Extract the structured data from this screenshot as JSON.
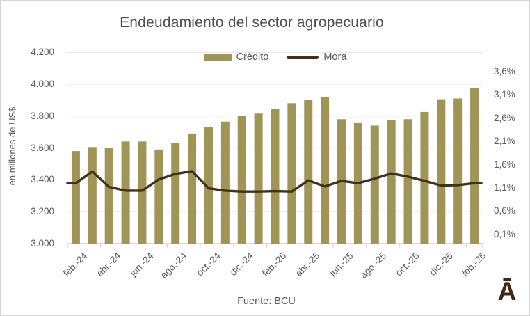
{
  "source_note": "Fuente: BCU",
  "logo_text": "Ā",
  "colors": {
    "bar": "#9e9557",
    "line": "#452e1a",
    "grid": "#d9d9d9",
    "axis_line": "#d9d9d9",
    "axis_text": "#595959",
    "title_text": "#4f4f4f",
    "logo": "#3d2817",
    "frame_border": "#d4d4d4",
    "background": "#ffffff"
  },
  "chart_data": {
    "type": "combo_bar_line",
    "title": "Endeudamiento del sector agropecuario",
    "grid": true,
    "legend_position": "top",
    "categories": [
      "feb.-24",
      "mar.-24",
      "abr.-24",
      "may.-24",
      "jun.-24",
      "jul.-24",
      "ago.-24",
      "sep.-24",
      "oct.-24",
      "nov.-24",
      "dic.-24",
      "ene.-25",
      "feb.-25",
      "mar.-25",
      "abr.-25",
      "may.-25",
      "jun.-25",
      "jul.-25",
      "ago.-25",
      "sep.-25",
      "oct.-25",
      "nov.-25",
      "dic.-25",
      "ene.-26",
      "feb.-26"
    ],
    "series": [
      {
        "name": "Crédito",
        "chart": "bar",
        "axis": "left",
        "unit": "millones de US$",
        "values": [
          3580,
          3605,
          3600,
          3640,
          3640,
          3590,
          3630,
          3690,
          3730,
          3765,
          3800,
          3815,
          3845,
          3880,
          3900,
          3920,
          3780,
          3760,
          3740,
          3775,
          3780,
          3825,
          3905,
          3910,
          3975
        ]
      },
      {
        "name": "Mora",
        "chart": "line",
        "axis": "right",
        "unit": "%",
        "values": [
          1.2,
          1.45,
          1.12,
          1.04,
          1.04,
          1.28,
          1.4,
          1.46,
          1.09,
          1.04,
          1.02,
          1.02,
          1.03,
          1.02,
          1.26,
          1.13,
          1.25,
          1.2,
          1.3,
          1.41,
          1.34,
          1.25,
          1.15,
          1.16,
          1.2
        ]
      }
    ],
    "left_axis": {
      "label": "en millones de US$",
      "min": 3000,
      "max": 4200,
      "step": 200,
      "tick_values": [
        3000,
        3200,
        3400,
        3600,
        3800,
        4000,
        4200
      ],
      "tick_labels": [
        "3.000",
        "3.200",
        "3.400",
        "3.600",
        "3.800",
        "4.000",
        "4.200"
      ]
    },
    "right_axis": {
      "min": -0.1,
      "max": 4.02,
      "step": 0.5,
      "tick_values": [
        0.1,
        0.6,
        1.1,
        1.6,
        2.1,
        2.6,
        3.1,
        3.6
      ],
      "tick_labels": [
        "0,1%",
        "0,6%",
        "1,1%",
        "1,6%",
        "2,1%",
        "2,6%",
        "3,1%",
        "3,6%"
      ]
    },
    "x_axis": {
      "label_every": 2,
      "visible_tick_labels": [
        "feb.-24",
        "abr.-24",
        "jun.-24",
        "ago.-24",
        "oct.-24",
        "dic.-24",
        "feb.-25",
        "abr.-25",
        "jun.-25",
        "ago.-25",
        "oct.-25",
        "dic.-25",
        "feb.-26"
      ]
    }
  }
}
